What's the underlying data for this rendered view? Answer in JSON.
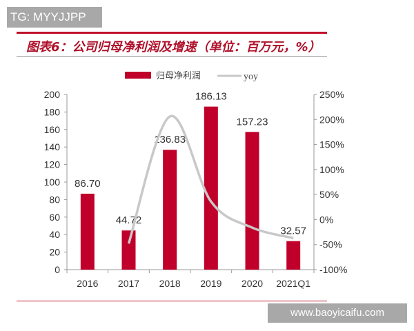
{
  "watermark_top": "TG: MYYJJPP",
  "watermark_bottom": "www.baoyicaifu.com",
  "chart_data": {
    "type": "bar+line",
    "title": "图表6：公司归母净利润及增速（单位：百万元，%）",
    "categories": [
      "2016",
      "2017",
      "2018",
      "2019",
      "2020",
      "2021Q1"
    ],
    "series": [
      {
        "name": "归母净利润",
        "type": "bar",
        "axis": "left",
        "values": [
          86.7,
          44.72,
          136.83,
          186.13,
          157.23,
          32.57
        ],
        "labels": [
          "86.70",
          "44.72",
          "136.83",
          "186.13",
          "157.23",
          "32.57"
        ],
        "color": "#c0002a"
      },
      {
        "name": "yoy",
        "type": "line",
        "axis": "right",
        "values": [
          null,
          -48,
          206,
          36,
          -16,
          -37
        ],
        "color": "#c8c8c8"
      }
    ],
    "left_axis": {
      "range": [
        0,
        200
      ],
      "ticks": [
        "0",
        "20",
        "40",
        "60",
        "80",
        "100",
        "120",
        "140",
        "160",
        "180",
        "200"
      ]
    },
    "right_axis": {
      "range": [
        -100,
        250
      ],
      "ticks": [
        "-100%",
        "-50%",
        "0%",
        "50%",
        "100%",
        "150%",
        "200%",
        "250%"
      ]
    },
    "legend": "top-center",
    "grid": false
  }
}
